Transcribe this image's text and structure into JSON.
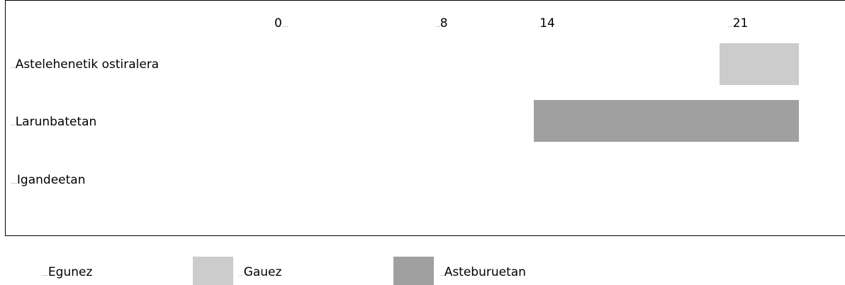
{
  "chart_data": {
    "type": "bar",
    "title": "",
    "xlabel": "",
    "ylabel": "",
    "x_ticks": [
      "0",
      "8",
      "14",
      "21"
    ],
    "categories": [
      "Astelehenetik ostiralera",
      "Larunbatetan",
      "Igandeetan"
    ],
    "series": [
      {
        "name": "Gauez",
        "color": "#cccccc",
        "category": "Astelehenetik ostiralera",
        "start": 21,
        "end": 24
      },
      {
        "name": "Asteburuetan",
        "color": "#a0a0a0",
        "category": "Larunbatetan",
        "start": 14,
        "end": 24
      }
    ],
    "legend": {
      "placement": "bottom",
      "items": [
        {
          "label": "Egunez",
          "color": ""
        },
        {
          "label": "Gauez",
          "color": "#cccccc"
        },
        {
          "label": "Asteburuetan",
          "color": "#a0a0a0"
        }
      ]
    }
  }
}
